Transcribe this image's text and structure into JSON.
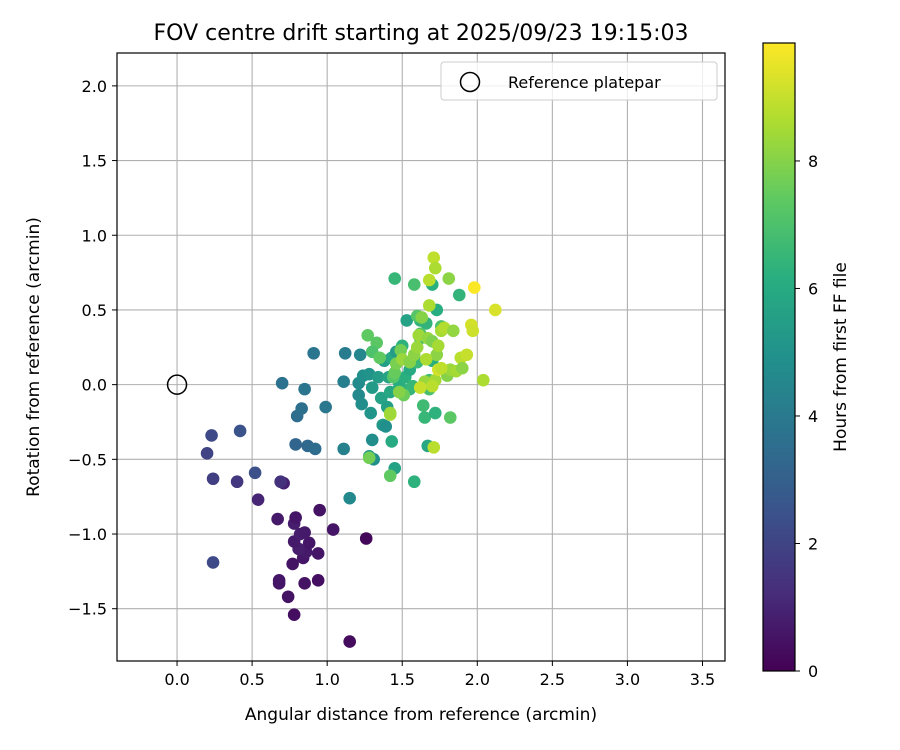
{
  "chart_data": {
    "type": "scatter",
    "title": "FOV centre drift starting at 2025/09/23 19:15:03",
    "xlabel": "Angular distance from reference (arcmin)",
    "ylabel": "Rotation from reference (arcmin)",
    "xlim": [
      -0.4,
      3.65
    ],
    "ylim": [
      -1.85,
      2.22
    ],
    "xticks": [
      0.0,
      0.5,
      1.0,
      1.5,
      2.0,
      2.5,
      3.0,
      3.5
    ],
    "xtick_labels": [
      "0.0",
      "0.5",
      "1.0",
      "1.5",
      "2.0",
      "2.5",
      "3.0",
      "3.5"
    ],
    "yticks": [
      -1.5,
      -1.0,
      -0.5,
      0.0,
      0.5,
      1.0,
      1.5,
      2.0
    ],
    "ytick_labels": [
      "−1.5",
      "−1.0",
      "−0.5",
      "0.0",
      "0.5",
      "1.0",
      "1.5",
      "2.0"
    ],
    "grid": true,
    "legend": {
      "label": "Reference platepar",
      "position": "top-right"
    },
    "reference_point": {
      "x": 0.0,
      "y": 0.0
    },
    "colorbar": {
      "label": "Hours from first FF file",
      "colormap": "viridis",
      "range": [
        0,
        9.85
      ],
      "ticks": [
        0,
        2,
        4,
        6,
        8
      ],
      "tick_labels": [
        "0",
        "2",
        "4",
        "6",
        "8"
      ]
    },
    "points": [
      [
        1.15,
        -1.72,
        0.3
      ],
      [
        0.78,
        -1.54,
        0.4
      ],
      [
        0.74,
        -1.42,
        0.5
      ],
      [
        0.68,
        -1.33,
        0.6
      ],
      [
        0.68,
        -1.31,
        0.6
      ],
      [
        0.85,
        -1.33,
        0.5
      ],
      [
        0.94,
        -1.31,
        0.4
      ],
      [
        0.77,
        -1.2,
        0.5
      ],
      [
        0.84,
        -1.16,
        0.6
      ],
      [
        0.86,
        -1.12,
        0.7
      ],
      [
        0.94,
        -1.13,
        0.6
      ],
      [
        0.81,
        -1.1,
        0.8
      ],
      [
        0.78,
        -1.05,
        0.7
      ],
      [
        0.88,
        -1.06,
        0.6
      ],
      [
        0.82,
        -1.0,
        0.8
      ],
      [
        0.85,
        -0.99,
        0.7
      ],
      [
        0.78,
        -0.93,
        0.8
      ],
      [
        0.79,
        -0.89,
        0.6
      ],
      [
        0.67,
        -0.9,
        0.7
      ],
      [
        0.95,
        -0.84,
        0.5
      ],
      [
        1.04,
        -0.97,
        0.6
      ],
      [
        1.26,
        -1.03,
        0.2
      ],
      [
        0.71,
        -0.66,
        0.9
      ],
      [
        0.54,
        -0.77,
        1.0
      ],
      [
        0.69,
        -0.65,
        1.4
      ],
      [
        0.4,
        -0.65,
        1.6
      ],
      [
        0.24,
        -0.63,
        1.8
      ],
      [
        0.24,
        -1.19,
        2.2
      ],
      [
        0.52,
        -0.59,
        2.4
      ],
      [
        0.2,
        -0.46,
        2.0
      ],
      [
        0.23,
        -0.34,
        2.2
      ],
      [
        0.42,
        -0.31,
        2.5
      ],
      [
        0.79,
        -0.4,
        3.2
      ],
      [
        0.87,
        -0.41,
        3.3
      ],
      [
        0.92,
        -0.43,
        3.5
      ],
      [
        0.7,
        0.01,
        3.7
      ],
      [
        0.8,
        -0.21,
        3.5
      ],
      [
        0.83,
        -0.16,
        3.6
      ],
      [
        0.85,
        -0.03,
        3.8
      ],
      [
        0.99,
        -0.15,
        3.9
      ],
      [
        0.91,
        0.21,
        3.8
      ],
      [
        1.12,
        0.21,
        4.1
      ],
      [
        1.11,
        0.02,
        4.2
      ],
      [
        1.11,
        -0.43,
        4.3
      ],
      [
        1.15,
        -0.76,
        4.6
      ],
      [
        1.22,
        0.2,
        4.5
      ],
      [
        1.21,
        -0.07,
        4.6
      ],
      [
        1.23,
        -0.13,
        4.8
      ],
      [
        1.21,
        0.01,
        4.7
      ],
      [
        1.24,
        0.06,
        4.9
      ],
      [
        1.28,
        0.07,
        5.0
      ],
      [
        1.29,
        -0.19,
        5.1
      ],
      [
        1.3,
        -0.37,
        4.8
      ],
      [
        1.31,
        -0.5,
        4.9
      ],
      [
        1.28,
        -0.48,
        5.2
      ],
      [
        1.3,
        -0.02,
        5.3
      ],
      [
        1.34,
        0.05,
        5.4
      ],
      [
        1.38,
        0.16,
        5.5
      ],
      [
        1.37,
        -0.27,
        5.3
      ],
      [
        1.39,
        -0.28,
        4.9
      ],
      [
        1.4,
        -0.15,
        5.5
      ],
      [
        1.36,
        -0.09,
        5.6
      ],
      [
        1.41,
        0.05,
        5.7
      ],
      [
        1.42,
        -0.05,
        5.8
      ],
      [
        1.43,
        0.18,
        5.9
      ],
      [
        1.46,
        0.22,
        5.4
      ],
      [
        1.45,
        -0.56,
        5.6
      ],
      [
        1.43,
        -0.38,
        6.0
      ],
      [
        1.47,
        -0.04,
        6.0
      ],
      [
        1.48,
        0.01,
        6.1
      ],
      [
        1.52,
        0.05,
        6.2
      ],
      [
        1.53,
        0.43,
        5.6
      ],
      [
        1.55,
        0.1,
        6.0
      ],
      [
        1.5,
        0.26,
        6.3
      ],
      [
        1.45,
        0.71,
        6.5
      ],
      [
        1.55,
        -0.03,
        6.4
      ],
      [
        1.57,
        -0.01,
        6.5
      ],
      [
        1.58,
        -0.65,
        6.3
      ],
      [
        1.6,
        0.15,
        6.6
      ],
      [
        1.62,
        0.43,
        6.4
      ],
      [
        1.64,
        -0.14,
        6.7
      ],
      [
        1.65,
        -0.22,
        6.5
      ],
      [
        1.67,
        -0.41,
        5.8
      ],
      [
        1.68,
        0.03,
        6.8
      ],
      [
        1.7,
        0.16,
        6.2
      ],
      [
        1.72,
        -0.19,
        6.3
      ],
      [
        1.73,
        0.5,
        6.1
      ],
      [
        1.7,
        0.67,
        6.2
      ],
      [
        1.66,
        0.41,
        6.4
      ],
      [
        1.62,
        0.31,
        6.6
      ],
      [
        1.68,
        -0.03,
        6.9
      ],
      [
        1.88,
        0.6,
        6.4
      ],
      [
        1.58,
        0.67,
        6.9
      ],
      [
        1.82,
        -0.22,
        7.3
      ],
      [
        1.76,
        0.39,
        7.0
      ],
      [
        1.6,
        0.46,
        7.2
      ],
      [
        1.62,
        0.34,
        7.1
      ],
      [
        1.27,
        0.33,
        7.4
      ],
      [
        1.33,
        0.28,
        7.3
      ],
      [
        1.3,
        0.22,
        7.0
      ],
      [
        1.35,
        0.18,
        7.4
      ],
      [
        1.44,
        0.05,
        7.2
      ],
      [
        1.42,
        -0.61,
        7.4
      ],
      [
        1.28,
        -0.49,
        7.7
      ],
      [
        1.42,
        -0.2,
        8.6
      ],
      [
        1.42,
        -0.19,
        8.4
      ],
      [
        1.45,
        0.08,
        7.5
      ],
      [
        1.46,
        0.14,
        7.8
      ],
      [
        1.49,
        0.23,
        7.7
      ],
      [
        1.51,
        -0.07,
        7.6
      ],
      [
        1.5,
        0.17,
        8.3
      ],
      [
        1.55,
        0.15,
        8.0
      ],
      [
        1.58,
        0.2,
        8.1
      ],
      [
        1.61,
        0.33,
        8.4
      ],
      [
        1.63,
        0.45,
        8.0
      ],
      [
        1.65,
        0.02,
        8.3
      ],
      [
        1.67,
        0.31,
        8.2
      ],
      [
        1.68,
        0.53,
        8.6
      ],
      [
        1.68,
        0.7,
        8.8
      ],
      [
        1.71,
        0.85,
        8.9
      ],
      [
        1.72,
        0.78,
        8.6
      ],
      [
        1.7,
        0.29,
        7.9
      ],
      [
        1.73,
        0.2,
        8.1
      ],
      [
        1.74,
        0.26,
        8.5
      ],
      [
        1.76,
        0.36,
        8.5
      ],
      [
        1.78,
        0.38,
        8.7
      ],
      [
        1.8,
        0.06,
        8.0
      ],
      [
        1.82,
        0.1,
        8.3
      ],
      [
        1.84,
        0.36,
        8.2
      ],
      [
        1.86,
        0.09,
        8.5
      ],
      [
        1.89,
        0.18,
        8.8
      ],
      [
        1.9,
        0.11,
        8.1
      ],
      [
        1.93,
        0.2,
        9.0
      ],
      [
        1.96,
        0.4,
        9.2
      ],
      [
        1.97,
        0.36,
        9.1
      ],
      [
        1.98,
        0.65,
        9.8
      ],
      [
        2.04,
        0.03,
        8.6
      ],
      [
        2.12,
        0.5,
        9.3
      ],
      [
        1.71,
        -0.42,
        8.8
      ],
      [
        1.62,
        -0.02,
        9.0
      ],
      [
        1.81,
        0.71,
        8.1
      ],
      [
        1.6,
        0.25,
        8.3
      ],
      [
        1.48,
        -0.05,
        8.0
      ],
      [
        1.72,
        0.03,
        8.5
      ],
      [
        1.66,
        0.17,
        8.6
      ],
      [
        1.7,
        -0.01,
        8.8
      ],
      [
        1.74,
        0.1,
        9.2
      ],
      [
        1.76,
        0.11,
        8.9
      ]
    ]
  }
}
